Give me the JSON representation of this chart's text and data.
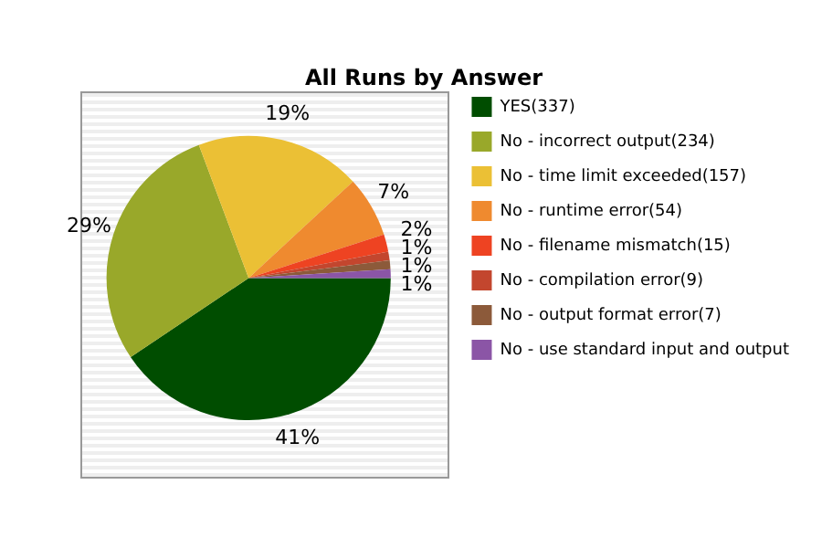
{
  "chart_data": {
    "type": "pie",
    "title": "All Runs by Answer",
    "categories": [
      "YES(337)",
      "No - incorrect output(234)",
      "No - time limit exceeded(157)",
      "No - runtime error(54)",
      "No - filename mismatch(15)",
      "No - compilation error(9)",
      "No - output format error(7)",
      "No - use standard input and output"
    ],
    "values": [
      41,
      29,
      19,
      7,
      2,
      1,
      1,
      1
    ],
    "value_labels": [
      "41%",
      "29%",
      "19%",
      "7%",
      "2%",
      "1%",
      "1%",
      "1%"
    ],
    "colors": [
      "#004d00",
      "#99a82a",
      "#ebc035",
      "#ef8a2f",
      "#ee4322",
      "#c3462e",
      "#8c5a3a",
      "#8b55a6"
    ],
    "legend": "right"
  }
}
